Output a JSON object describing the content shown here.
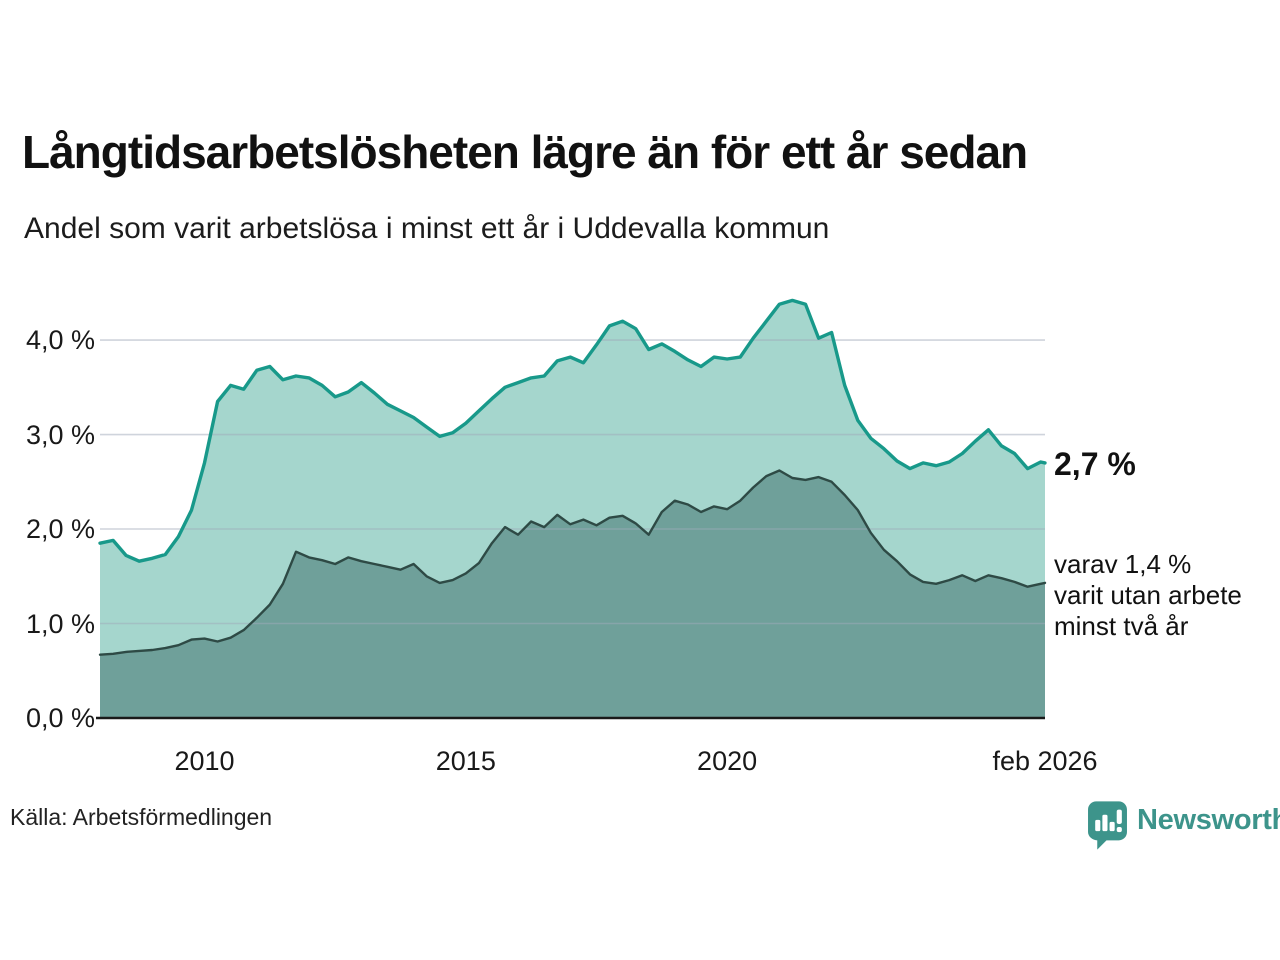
{
  "chart_data": {
    "type": "area",
    "title": "Långtidsarbetslösheten lägre än för ett år sedan",
    "subtitle": "Andel som varit arbetslösa i minst ett år i Uddevalla kommun",
    "xlabel": "",
    "ylabel": "",
    "unit": "%",
    "grid": "horizontal",
    "xlim": [
      2008.0,
      2026.083
    ],
    "ylim": [
      0,
      4.53
    ],
    "x": [
      2008.0,
      2008.25,
      2008.5,
      2008.75,
      2009.0,
      2009.25,
      2009.5,
      2009.75,
      2010.0,
      2010.25,
      2010.5,
      2010.75,
      2011.0,
      2011.25,
      2011.5,
      2011.75,
      2012.0,
      2012.25,
      2012.5,
      2012.75,
      2013.0,
      2013.25,
      2013.5,
      2013.75,
      2014.0,
      2014.25,
      2014.5,
      2014.75,
      2015.0,
      2015.25,
      2015.5,
      2015.75,
      2016.0,
      2016.25,
      2016.5,
      2016.75,
      2017.0,
      2017.25,
      2017.5,
      2017.75,
      2018.0,
      2018.25,
      2018.5,
      2018.75,
      2019.0,
      2019.25,
      2019.5,
      2019.75,
      2020.0,
      2020.25,
      2020.5,
      2020.75,
      2021.0,
      2021.25,
      2021.5,
      2021.75,
      2022.0,
      2022.25,
      2022.5,
      2022.75,
      2023.0,
      2023.25,
      2023.5,
      2023.75,
      2024.0,
      2024.25,
      2024.5,
      2024.75,
      2025.0,
      2025.25,
      2025.5,
      2025.75,
      2026.0,
      2026.083
    ],
    "series": [
      {
        "name": "Andel som varit arbetslösa i minst ett år",
        "line_color": "#18998a",
        "fill_color": "#a5d6cd",
        "values": [
          1.85,
          1.88,
          1.72,
          1.66,
          1.69,
          1.73,
          1.92,
          2.2,
          2.7,
          3.35,
          3.52,
          3.48,
          3.68,
          3.72,
          3.58,
          3.62,
          3.6,
          3.52,
          3.4,
          3.45,
          3.55,
          3.44,
          3.32,
          3.25,
          3.18,
          3.08,
          2.98,
          3.02,
          3.12,
          3.25,
          3.38,
          3.5,
          3.55,
          3.6,
          3.62,
          3.78,
          3.82,
          3.76,
          3.95,
          4.15,
          4.2,
          4.12,
          3.9,
          3.96,
          3.88,
          3.79,
          3.72,
          3.82,
          3.8,
          3.82,
          4.02,
          4.2,
          4.38,
          4.42,
          4.38,
          4.02,
          4.08,
          3.52,
          3.15,
          2.96,
          2.85,
          2.72,
          2.64,
          2.7,
          2.67,
          2.71,
          2.8,
          2.93,
          3.05,
          2.88,
          2.8,
          2.64,
          2.71,
          2.7
        ]
      },
      {
        "name": "varav utan arbete minst två år",
        "line_color": "#2e4a45",
        "fill_color": "#6fa09a",
        "values": [
          0.67,
          0.68,
          0.7,
          0.71,
          0.72,
          0.74,
          0.77,
          0.83,
          0.84,
          0.81,
          0.85,
          0.93,
          1.06,
          1.2,
          1.42,
          1.76,
          1.7,
          1.67,
          1.63,
          1.7,
          1.66,
          1.63,
          1.6,
          1.57,
          1.63,
          1.5,
          1.43,
          1.46,
          1.53,
          1.64,
          1.85,
          2.02,
          1.94,
          2.08,
          2.02,
          2.15,
          2.05,
          2.1,
          2.04,
          2.12,
          2.14,
          2.06,
          1.94,
          2.18,
          2.3,
          2.26,
          2.18,
          2.24,
          2.21,
          2.3,
          2.44,
          2.56,
          2.62,
          2.54,
          2.52,
          2.55,
          2.5,
          2.36,
          2.2,
          1.96,
          1.78,
          1.66,
          1.52,
          1.44,
          1.42,
          1.46,
          1.51,
          1.45,
          1.51,
          1.48,
          1.44,
          1.39,
          1.42,
          1.43
        ]
      }
    ],
    "y_ticks": [
      {
        "value": 0,
        "label": "0,0 %"
      },
      {
        "value": 1,
        "label": "1,0 %"
      },
      {
        "value": 2,
        "label": "2,0 %"
      },
      {
        "value": 3,
        "label": "3,0 %"
      },
      {
        "value": 4,
        "label": "4,0 %"
      }
    ],
    "x_ticks": [
      {
        "value": 2010,
        "label": "2010"
      },
      {
        "value": 2015,
        "label": "2015"
      },
      {
        "value": 2020,
        "label": "2020"
      },
      {
        "value": 2026.083,
        "label": "feb 2026"
      }
    ],
    "end_label_primary": "2,7 %",
    "end_label_secondary_lines": [
      "varav 1,4 %",
      "varit utan arbete",
      "minst två år"
    ],
    "gridline_color": "rgba(160,170,185,0.5)",
    "axis_color": "#1a1a1a"
  },
  "footer": {
    "source": "Källa: Arbetsförmedlingen",
    "brand": "Newsworthy",
    "brand_color": "#3d948b"
  }
}
